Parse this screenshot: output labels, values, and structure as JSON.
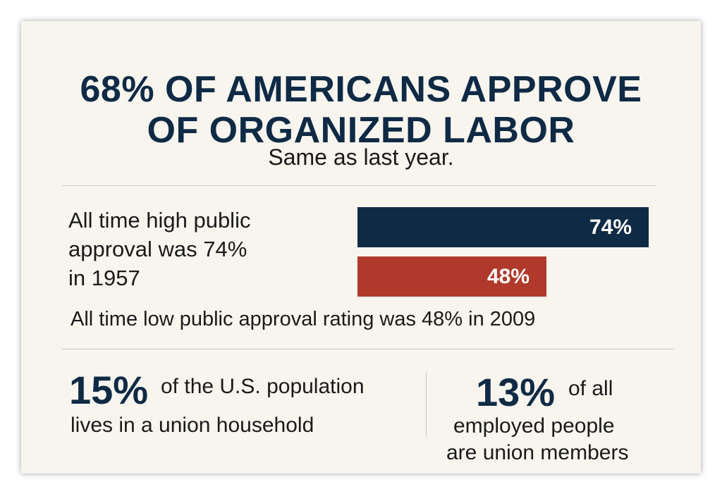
{
  "headline": {
    "line1": "68% OF AMERICANS APPROVE",
    "line2": "OF ORGANIZED LABOR"
  },
  "subtitle": "Same as last year.",
  "high_note": {
    "line1": "All time high public",
    "line2": "approval was 74%",
    "line3": "in 1957"
  },
  "low_note": "All time low public approval rating was 48% in 2009",
  "stats": {
    "household": {
      "value": "15%",
      "text_line1": "of the U.S. population",
      "text_line2": "lives in a union household"
    },
    "members": {
      "value": "13%",
      "text_line1": "of all",
      "text_line2": "employed people",
      "text_line3": "are union members"
    }
  },
  "colors": {
    "navy": "#0f2a45",
    "red": "#b0392b",
    "background": "#f8f5ef"
  },
  "chart_data": {
    "type": "bar",
    "orientation": "horizontal",
    "categories": [
      "All time high (1957)",
      "All time low (2009)"
    ],
    "values": [
      74,
      48
    ],
    "labels": [
      "74%",
      "48%"
    ],
    "colors": [
      "#0f2a45",
      "#b0392b"
    ],
    "xlim": [
      0,
      100
    ],
    "title": "68% OF AMERICANS APPROVE OF ORGANIZED LABOR",
    "subtitle": "Same as last year.",
    "grid": false
  }
}
